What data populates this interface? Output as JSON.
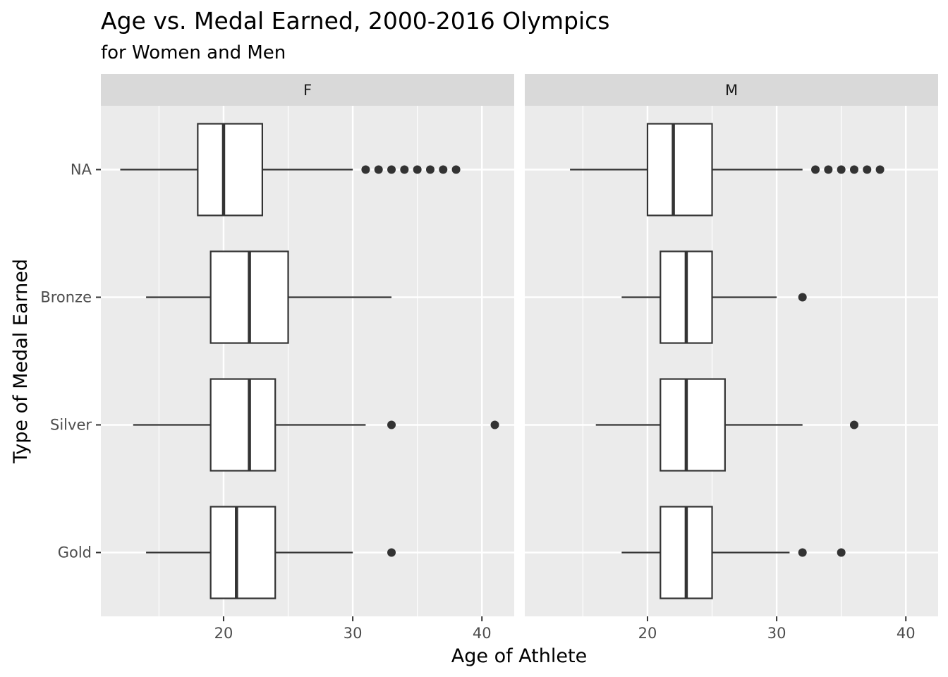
{
  "chart_data": {
    "type": "boxplot",
    "title": "Age vs. Medal Earned, 2000-2016 Olympics",
    "subtitle": "for Women and Men",
    "xlabel": "Age of Athlete",
    "ylabel": "Type of Medal Earned",
    "xlim": [
      10.5,
      42.5
    ],
    "x_ticks": [
      20,
      30,
      40
    ],
    "categories": [
      "NA",
      "Bronze",
      "Silver",
      "Gold"
    ],
    "grid": true,
    "colors": {
      "panel_background": "#ebebeb",
      "strip_background": "#d9d9d9",
      "grid": "#ffffff",
      "box_fill": "#ffffff",
      "box_line": "#333333",
      "outlier": "#333333"
    },
    "panels": [
      {
        "label": "F",
        "boxes": [
          {
            "category": "NA",
            "whisker_low": 12,
            "q1": 18,
            "median": 20,
            "q3": 23,
            "whisker_high": 30,
            "outliers": [
              31,
              32,
              33,
              34,
              35,
              36,
              37,
              38
            ]
          },
          {
            "category": "Bronze",
            "whisker_low": 14,
            "q1": 19,
            "median": 22,
            "q3": 25,
            "whisker_high": 33,
            "outliers": []
          },
          {
            "category": "Silver",
            "whisker_low": 13,
            "q1": 19,
            "median": 22,
            "q3": 24,
            "whisker_high": 31,
            "outliers": [
              33,
              41
            ]
          },
          {
            "category": "Gold",
            "whisker_low": 14,
            "q1": 19,
            "median": 21,
            "q3": 24,
            "whisker_high": 30,
            "outliers": [
              33
            ]
          }
        ]
      },
      {
        "label": "M",
        "boxes": [
          {
            "category": "NA",
            "whisker_low": 14,
            "q1": 20,
            "median": 22,
            "q3": 25,
            "whisker_high": 32,
            "outliers": [
              33,
              34,
              35,
              36,
              37,
              38
            ]
          },
          {
            "category": "Bronze",
            "whisker_low": 18,
            "q1": 21,
            "median": 23,
            "q3": 25,
            "whisker_high": 30,
            "outliers": [
              32
            ]
          },
          {
            "category": "Silver",
            "whisker_low": 16,
            "q1": 21,
            "median": 23,
            "q3": 26,
            "whisker_high": 32,
            "outliers": [
              36
            ]
          },
          {
            "category": "Gold",
            "whisker_low": 18,
            "q1": 21,
            "median": 23,
            "q3": 25,
            "whisker_high": 31,
            "outliers": [
              32,
              35
            ]
          }
        ]
      }
    ]
  }
}
